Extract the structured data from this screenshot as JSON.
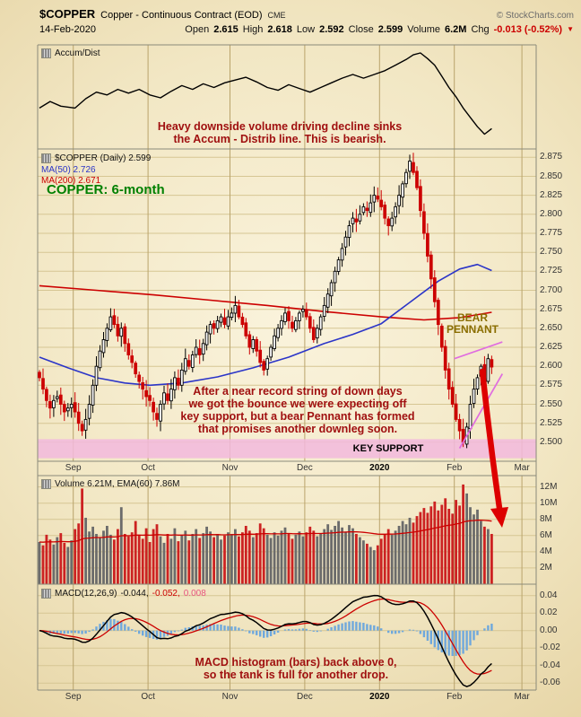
{
  "header": {
    "symbol": "$COPPER",
    "description": "Copper - Continuous Contract (EOD)",
    "exchange": "CME",
    "brand": "© StockCharts.com",
    "date": "14-Feb-2020",
    "quote": {
      "open_label": "Open",
      "open": "2.615",
      "high_label": "High",
      "high": "2.618",
      "low_label": "Low",
      "low": "2.592",
      "close_label": "Close",
      "close": "2.599",
      "volume_label": "Volume",
      "volume": "6.2M",
      "chg_label": "Chg",
      "chg": "-0.013 (-0.52%)"
    }
  },
  "icons": {
    "down_triangle": "▼"
  },
  "panels": {
    "accumdist": {
      "legend": "Accum/Dist",
      "annotation": "Heavy downside volume driving decline sinks\nthe Accum - Distrib line. This is bearish."
    },
    "price": {
      "legend_main": "$COPPER (Daily) 2.599",
      "legend_ma50": "MA(50) 2.726",
      "legend_ma200": "MA(200) 2.671",
      "title_annotation": "COPPER: 6-month",
      "bear_pennant_label": "BEAR\nPENNANT",
      "key_support_label": "KEY SUPPORT",
      "annotation": "After a near record string of down days\nwe got the bounce we were expecting off\nkey support, but a bear Pennant has formed\nthat promises another downleg soon."
    },
    "volume": {
      "legend": "Volume 6.21M, EMA(60) 7.86M"
    },
    "macd": {
      "legend_name": "MACD(12,26,9)",
      "legend_macd": "-0.044,",
      "legend_signal": "-0.052,",
      "legend_hist": "0.008",
      "annotation": "MACD histogram (bars) back above 0,\nso the tank is full for another drop."
    }
  },
  "colors": {
    "background_center": "#faf3dc",
    "background_outer": "#e6d4a4",
    "grid_vertical": "#b9a36b",
    "grid_horizontal": "#d6c693",
    "frame": "#8a8a7a",
    "candle_up_fill": "#ffffff",
    "candle_up_stroke": "#000000",
    "candle_down": "#cc0000",
    "ma50": "#2b35c8",
    "ma200": "#cc0000",
    "accum_dist_line": "#000000",
    "volume_up": "#6b6b6b",
    "volume_down": "#cc2222",
    "volume_ema": "#cc0000",
    "macd_line": "#000000",
    "macd_signal": "#cc0000",
    "macd_hist": "#6fa8dc",
    "macd_hist_legend": "#e75480",
    "support_band": "#f2b9dd",
    "pennant": "#e06ce0",
    "arrow": "#dd0000",
    "annotation": "#a01010",
    "bear_pennant_label": "#8a6d00",
    "title_green": "#008000",
    "chg_red": "#cc0000"
  },
  "chart_data": {
    "type": "candlestick",
    "title": "$COPPER (Daily) — 6-month chart with Accum/Dist, Volume and MACD panels",
    "x_axis_months": [
      "Sep",
      "Oct",
      "Nov",
      "Dec",
      "2020",
      "Feb",
      "Mar"
    ],
    "price_axis_range": [
      2.5,
      2.875
    ],
    "total_slots": 140,
    "first_open": 2.592,
    "month_slots": [
      [
        "Sep",
        10
      ],
      [
        "Oct",
        31
      ],
      [
        "Nov",
        54
      ],
      [
        "Dec",
        75
      ],
      [
        "2020",
        96
      ],
      [
        "Feb",
        117
      ],
      [
        "Mar",
        136
      ]
    ],
    "price_ticks": [
      2.875,
      2.85,
      2.825,
      2.8,
      2.775,
      2.75,
      2.725,
      2.7,
      2.675,
      2.65,
      2.625,
      2.6,
      2.575,
      2.55,
      2.525,
      2.5
    ],
    "volume_ticks": [
      12,
      10,
      8,
      6,
      4,
      2
    ],
    "macd_ticks": [
      0.04,
      0.02,
      0,
      -0.02,
      -0.04,
      -0.06
    ],
    "closes": [
      2.585,
      2.57,
      2.555,
      2.545,
      2.555,
      2.56,
      2.55,
      2.54,
      2.545,
      2.55,
      2.54,
      2.525,
      2.515,
      2.53,
      2.55,
      2.575,
      2.6,
      2.62,
      2.635,
      2.65,
      2.665,
      2.655,
      2.64,
      2.65,
      2.63,
      2.615,
      2.605,
      2.59,
      2.58,
      2.57,
      2.56,
      2.555,
      2.54,
      2.53,
      2.55,
      2.565,
      2.555,
      2.57,
      2.585,
      2.575,
      2.595,
      2.61,
      2.6,
      2.615,
      2.625,
      2.615,
      2.63,
      2.645,
      2.655,
      2.65,
      2.66,
      2.665,
      2.655,
      2.665,
      2.67,
      2.68,
      2.665,
      2.655,
      2.64,
      2.625,
      2.635,
      2.62,
      2.605,
      2.595,
      2.61,
      2.625,
      2.64,
      2.65,
      2.66,
      2.67,
      2.66,
      2.65,
      2.66,
      2.67,
      2.675,
      2.665,
      2.65,
      2.635,
      2.65,
      2.665,
      2.68,
      2.695,
      2.71,
      2.725,
      2.74,
      2.755,
      2.77,
      2.785,
      2.795,
      2.79,
      2.8,
      2.81,
      2.805,
      2.815,
      2.825,
      2.82,
      2.81,
      2.795,
      2.785,
      2.795,
      2.81,
      2.825,
      2.84,
      2.855,
      2.87,
      2.855,
      2.835,
      2.805,
      2.775,
      2.745,
      2.715,
      2.685,
      2.655,
      2.625,
      2.595,
      2.57,
      2.55,
      2.53,
      2.515,
      2.5,
      2.52,
      2.55,
      2.57,
      2.585,
      2.6,
      2.58,
      2.61,
      2.599
    ],
    "volumes": [
      5.2,
      4.8,
      6.1,
      5.5,
      4.9,
      5.8,
      6.3,
      5.1,
      4.6,
      5.4,
      6.8,
      7.5,
      11.8,
      8.2,
      6.5,
      7.1,
      6.2,
      5.8,
      6.6,
      7.2,
      6.1,
      5.5,
      6.8,
      9.5,
      6.2,
      5.9,
      6.4,
      7.8,
      6.1,
      5.6,
      6.9,
      5.2,
      6.8,
      7.4,
      5.9,
      5.1,
      6.2,
      5.6,
      6.9,
      5.3,
      6.1,
      6.6,
      5.4,
      6.2,
      6.8,
      5.7,
      6.3,
      7.1,
      6.5,
      5.8,
      6.2,
      5.5,
      6.0,
      6.4,
      6.2,
      6.8,
      5.9,
      6.4,
      7.2,
      6.6,
      5.8,
      6.3,
      7.5,
      6.9,
      6.1,
      5.7,
      6.4,
      6.0,
      6.6,
      7.0,
      6.2,
      5.6,
      6.1,
      6.5,
      5.9,
      6.4,
      7.1,
      6.6,
      5.9,
      6.3,
      6.8,
      7.4,
      6.7,
      7.2,
      7.8,
      7.0,
      6.5,
      7.3,
      6.9,
      6.2,
      5.8,
      5.4,
      5.0,
      4.6,
      4.2,
      4.8,
      5.6,
      6.2,
      6.8,
      6.1,
      6.6,
      7.2,
      7.8,
      7.4,
      8.2,
      7.6,
      8.4,
      8.9,
      9.4,
      8.8,
      9.6,
      10.2,
      9.1,
      9.8,
      10.6,
      9.3,
      8.7,
      10.4,
      9.7,
      12.3,
      11.2,
      9.5,
      8.6,
      9.2,
      7.8,
      7.1,
      6.8,
      6.2
    ],
    "ma50_points": [
      [
        0,
        2.612
      ],
      [
        8,
        2.598
      ],
      [
        16,
        2.585
      ],
      [
        24,
        2.578
      ],
      [
        31,
        2.575
      ],
      [
        40,
        2.578
      ],
      [
        50,
        2.586
      ],
      [
        60,
        2.598
      ],
      [
        70,
        2.612
      ],
      [
        80,
        2.63
      ],
      [
        88,
        2.642
      ],
      [
        96,
        2.656
      ],
      [
        104,
        2.684
      ],
      [
        112,
        2.712
      ],
      [
        118,
        2.728
      ],
      [
        123,
        2.734
      ],
      [
        127,
        2.726
      ]
    ],
    "ma200_points": [
      [
        0,
        2.706
      ],
      [
        16,
        2.7
      ],
      [
        32,
        2.694
      ],
      [
        48,
        2.687
      ],
      [
        64,
        2.68
      ],
      [
        80,
        2.672
      ],
      [
        96,
        2.665
      ],
      [
        108,
        2.661
      ],
      [
        118,
        2.664
      ],
      [
        127,
        2.671
      ]
    ],
    "accumdist_points": [
      [
        0,
        0.4
      ],
      [
        3,
        0.47
      ],
      [
        6,
        0.42
      ],
      [
        10,
        0.4
      ],
      [
        13,
        0.5
      ],
      [
        16,
        0.57
      ],
      [
        19,
        0.54
      ],
      [
        22,
        0.6
      ],
      [
        25,
        0.56
      ],
      [
        28,
        0.6
      ],
      [
        31,
        0.54
      ],
      [
        34,
        0.51
      ],
      [
        37,
        0.58
      ],
      [
        40,
        0.64
      ],
      [
        43,
        0.6
      ],
      [
        46,
        0.66
      ],
      [
        49,
        0.62
      ],
      [
        52,
        0.67
      ],
      [
        55,
        0.7
      ],
      [
        58,
        0.73
      ],
      [
        61,
        0.68
      ],
      [
        64,
        0.62
      ],
      [
        67,
        0.59
      ],
      [
        70,
        0.65
      ],
      [
        73,
        0.61
      ],
      [
        76,
        0.57
      ],
      [
        79,
        0.62
      ],
      [
        82,
        0.67
      ],
      [
        85,
        0.72
      ],
      [
        88,
        0.76
      ],
      [
        91,
        0.72
      ],
      [
        94,
        0.76
      ],
      [
        97,
        0.8
      ],
      [
        100,
        0.86
      ],
      [
        103,
        0.92
      ],
      [
        105,
        0.97
      ],
      [
        107,
        0.99
      ],
      [
        109,
        0.93
      ],
      [
        111,
        0.86
      ],
      [
        113,
        0.74
      ],
      [
        115,
        0.62
      ],
      [
        117,
        0.52
      ],
      [
        119,
        0.4
      ],
      [
        121,
        0.3
      ],
      [
        123,
        0.2
      ],
      [
        125,
        0.12
      ],
      [
        126,
        0.15
      ],
      [
        127,
        0.18
      ]
    ],
    "overlays": {
      "support_band": {
        "top": 2.504,
        "bottom": 2.479
      },
      "pennant_upper": [
        [
          116.5,
          2.61
        ],
        [
          130,
          2.632
        ]
      ],
      "pennant_lower": [
        [
          118,
          2.492
        ],
        [
          130,
          2.59
        ]
      ],
      "arrow": {
        "curve": [
          [
            538,
            414
          ],
          [
            544,
            470
          ],
          [
            551,
            524
          ],
          [
            557,
            566
          ]
        ],
        "head": [
          [
            560,
            588
          ],
          [
            547,
            567
          ],
          [
            567,
            565
          ]
        ]
      }
    }
  }
}
